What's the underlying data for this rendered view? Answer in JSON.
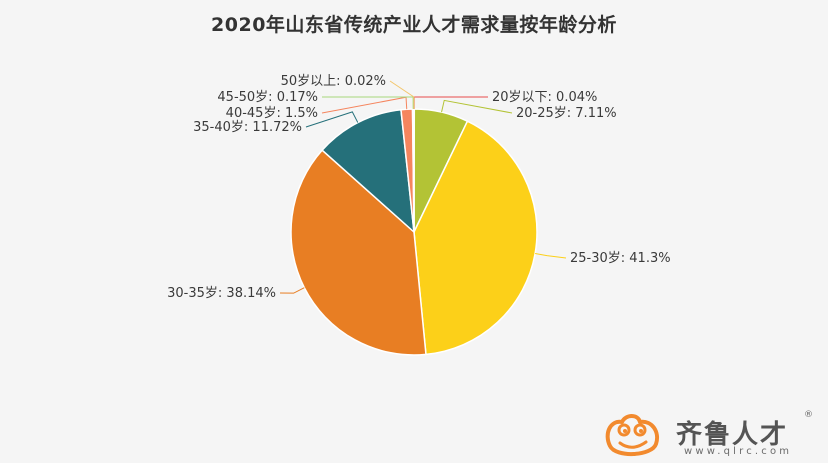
{
  "chart_data": {
    "type": "pie",
    "title": "2020年山东省传统产业人才需求量按年龄分析",
    "slices": [
      {
        "label": "20岁以下",
        "value": 0.04,
        "color": "#e84a4a"
      },
      {
        "label": "20-25岁",
        "value": 7.11,
        "color": "#b3c335"
      },
      {
        "label": "25-30岁",
        "value": 41.3,
        "color": "#fcd019"
      },
      {
        "label": "30-35岁",
        "value": 38.14,
        "color": "#e87e23"
      },
      {
        "label": "35-40岁",
        "value": 11.72,
        "color": "#25707a"
      },
      {
        "label": "40-45岁",
        "value": 1.5,
        "color": "#f5855e"
      },
      {
        "label": "45-50岁",
        "value": 0.17,
        "color": "#a6d67a"
      },
      {
        "label": "50岁以上",
        "value": 0.02,
        "color": "#f3c66c"
      }
    ],
    "label_format": "{label}: {value}%",
    "start_angle": "12 o'clock",
    "direction": "clockwise",
    "legend": "none"
  },
  "brand": {
    "name": "齐鲁人才",
    "url": "www.qlrc.com",
    "reg": "®",
    "logo_icon": "frog-icon",
    "logo_color": "#f28a2e"
  }
}
